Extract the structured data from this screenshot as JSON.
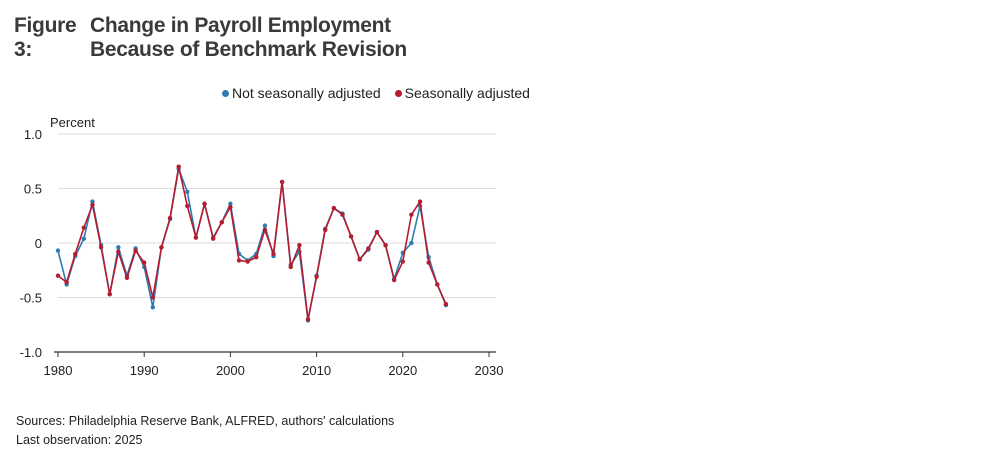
{
  "figure": {
    "number": "Figure 3:",
    "title": "Change in Payroll Employment Because of Benchmark Revision"
  },
  "legend": {
    "nsa": "Not seasonally adjusted",
    "sa": "Seasonally adjusted"
  },
  "footer": {
    "sources": "Sources: Philadelphia Reserve Bank, ALFRED, authors' calculations",
    "last_obs": "Last observation: 2025"
  },
  "colors": {
    "nsa": "#2f7bb3",
    "sa": "#b51c2e",
    "grid": "#dcdcdc",
    "axis": "#333333"
  },
  "chart_data": {
    "type": "line",
    "title": "Change in Payroll Employment Because of Benchmark Revision",
    "ylabel": "Percent",
    "xlabel": "",
    "xlim": [
      1980,
      2030
    ],
    "ylim": [
      -1.0,
      1.0
    ],
    "xticks": [
      "1980",
      "1990",
      "2000",
      "2010",
      "2020",
      "2030"
    ],
    "yticks": [
      "1.0",
      "0.5",
      "0",
      "-0.5",
      "-1.0"
    ],
    "grid": "horizontal",
    "legend_position": "top-right",
    "x": [
      1980,
      1981,
      1982,
      1983,
      1984,
      1985,
      1986,
      1987,
      1988,
      1989,
      1990,
      1991,
      1992,
      1993,
      1994,
      1995,
      1996,
      1997,
      1998,
      1999,
      2000,
      2001,
      2002,
      2003,
      2004,
      2005,
      2006,
      2007,
      2008,
      2009,
      2010,
      2011,
      2012,
      2013,
      2014,
      2015,
      2016,
      2017,
      2018,
      2019,
      2020,
      2021,
      2022,
      2023,
      2024,
      2025
    ],
    "series": [
      {
        "name": "Not seasonally adjusted",
        "color": "#2f7bb3",
        "values": [
          -0.07,
          -0.38,
          -0.12,
          0.04,
          0.38,
          -0.02,
          -0.47,
          -0.04,
          -0.3,
          -0.05,
          -0.22,
          -0.59,
          -0.04,
          0.22,
          0.68,
          0.47,
          0.05,
          0.36,
          0.05,
          0.19,
          0.36,
          -0.1,
          -0.16,
          -0.1,
          0.16,
          -0.12,
          0.56,
          -0.2,
          -0.08,
          -0.71,
          -0.3,
          0.13,
          0.32,
          0.27,
          0.06,
          -0.15,
          -0.06,
          0.1,
          -0.02,
          -0.33,
          -0.09,
          0.0,
          0.34,
          -0.13,
          -0.38,
          -0.57
        ]
      },
      {
        "name": "Seasonally adjusted",
        "color": "#b51c2e",
        "values": [
          -0.3,
          -0.36,
          -0.1,
          0.14,
          0.35,
          -0.04,
          -0.47,
          -0.08,
          -0.32,
          -0.07,
          -0.18,
          -0.5,
          -0.04,
          0.23,
          0.7,
          0.34,
          0.05,
          0.36,
          0.04,
          0.19,
          0.33,
          -0.16,
          -0.17,
          -0.13,
          0.12,
          -0.1,
          0.56,
          -0.22,
          -0.02,
          -0.7,
          -0.31,
          0.12,
          0.32,
          0.26,
          0.06,
          -0.15,
          -0.05,
          0.1,
          -0.02,
          -0.34,
          -0.17,
          0.26,
          0.38,
          -0.18,
          -0.38,
          -0.56
        ]
      }
    ]
  }
}
